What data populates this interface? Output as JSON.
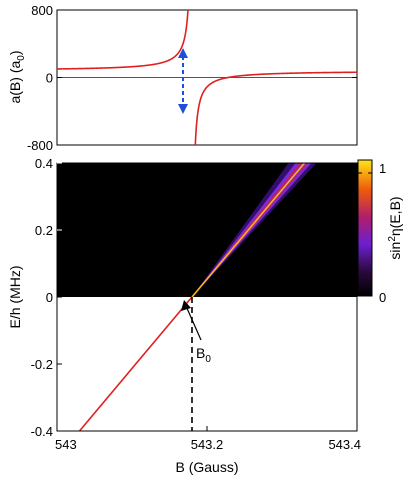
{
  "chart_data": [
    {
      "type": "line",
      "panel": "top",
      "ylabel_main": "a(B) (a",
      "ylabel_sub": "0",
      "ylabel_close": ")",
      "ylim": [
        -800,
        800
      ],
      "xlim": [
        543.0,
        543.4
      ],
      "yticks": [
        800,
        0,
        -800
      ],
      "ytick_labels": [
        "800",
        "0",
        "-800"
      ],
      "resonance": {
        "B0": 543.18,
        "a_bg": 80,
        "Delta": 0.048
      },
      "reference_line_y": 0,
      "annotation": "double-headed dashed arrow indicating divergence at resonance",
      "colors": {
        "curve": "#e02020",
        "arrow": "#1f4fd6",
        "axis": "#000000"
      }
    },
    {
      "type": "heatmap",
      "panel": "bottom",
      "xlabel": "B (Gauss)",
      "ylabel": "E/h (MHz)",
      "xlim": [
        543.0,
        543.4
      ],
      "ylim": [
        -0.4,
        0.4
      ],
      "xticks": [
        543.0,
        543.2,
        543.4
      ],
      "xtick_labels": [
        "543",
        "543.2",
        "543.4"
      ],
      "yticks": [
        0.4,
        0.2,
        0,
        -0.2,
        -0.4
      ],
      "ytick_labels": [
        "0.4",
        "0.2",
        "0",
        "-0.2",
        "-0.4"
      ],
      "bound_state_line": {
        "x": [
          543.03,
          543.18
        ],
        "y": [
          -0.4,
          0.0
        ]
      },
      "resonance_center_line": {
        "x": [
          543.18,
          543.33
        ],
        "y": [
          0.0,
          0.4
        ]
      },
      "B0_label": "B",
      "B0_sub": "0",
      "colorbar": {
        "label_main": "sin",
        "label_sup": "2",
        "label_rest": "η(E,B)",
        "min_label": "0",
        "max_label": "1",
        "range": [
          0,
          1
        ]
      },
      "colors": {
        "bound_line": "#e02020",
        "background": "#000000"
      }
    }
  ]
}
